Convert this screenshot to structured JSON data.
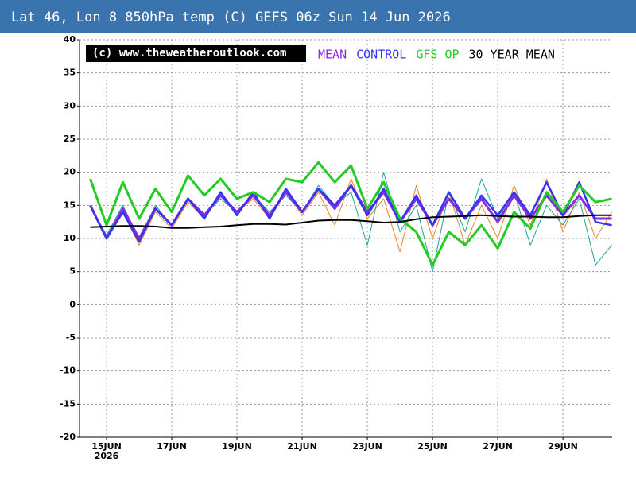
{
  "chart_data": {
    "type": "line",
    "title": "Lat 46, Lon 8 850hPa temp (C) GEFS 06z Sun 14 Jun 2026",
    "watermark": "(c) www.theweatheroutlook.com",
    "year_label": "2026",
    "x": [
      14.5,
      15,
      15.5,
      16,
      16.5,
      17,
      17.5,
      18,
      18.5,
      19,
      19.5,
      20,
      20.5,
      21,
      21.5,
      22,
      22.5,
      23,
      23.5,
      24,
      24.5,
      25,
      25.5,
      26,
      26.5,
      27,
      27.5,
      28,
      28.5,
      29,
      29.5,
      30,
      30.5
    ],
    "xlim": [
      14.17,
      30.51
    ],
    "xticks": [
      {
        "value": 15,
        "label": "15JUN"
      },
      {
        "value": 17,
        "label": "17JUN"
      },
      {
        "value": 19,
        "label": "19JUN"
      },
      {
        "value": 21,
        "label": "21JUN"
      },
      {
        "value": 23,
        "label": "23JUN"
      },
      {
        "value": 25,
        "label": "25JUN"
      },
      {
        "value": 27,
        "label": "27JUN"
      },
      {
        "value": 29,
        "label": "29JUN"
      }
    ],
    "ylim": [
      -20,
      40
    ],
    "yticks": [
      -20,
      -15,
      -10,
      -5,
      0,
      5,
      10,
      15,
      20,
      25,
      30,
      35,
      40
    ],
    "grid": true,
    "series": [
      {
        "color": "#f08020",
        "width": 1,
        "values": [
          15,
          10,
          14,
          9,
          14,
          11.5,
          15.5,
          13,
          16.5,
          14,
          16,
          13,
          17,
          13.5,
          17,
          12,
          19,
          13,
          16,
          8,
          18,
          10,
          17,
          9,
          15,
          10,
          18,
          12,
          19,
          11,
          17,
          10,
          14
        ]
      },
      {
        "color": "#20a0a0",
        "width": 1,
        "values": [
          15,
          10.5,
          15,
          10,
          15,
          12,
          16,
          13.5,
          16,
          14,
          16.5,
          14,
          16.5,
          14,
          18,
          15,
          17,
          9,
          20,
          11,
          15,
          5,
          17,
          11,
          19,
          13,
          17,
          9,
          15,
          12,
          16,
          6,
          9
        ]
      },
      {
        "name": "MEAN",
        "color": "#8a2be2",
        "width": 3,
        "values": [
          15,
          10,
          14.5,
          10,
          14.5,
          12,
          16,
          13.5,
          16.5,
          14,
          16.5,
          13.5,
          17,
          14,
          17.5,
          14.5,
          18,
          14,
          17,
          12.5,
          16,
          12,
          16,
          13,
          16,
          12.5,
          16.5,
          13,
          16.5,
          13.5,
          16.5,
          13,
          13
        ]
      },
      {
        "name": "CONTROL",
        "color": "#3535f0",
        "width": 2.5,
        "values": [
          15,
          10,
          14,
          9.5,
          14.5,
          12,
          16,
          13,
          17,
          13.5,
          17,
          13,
          17.5,
          14,
          17.5,
          15,
          18,
          13.5,
          17.5,
          12.5,
          16.5,
          12,
          17,
          13,
          16.5,
          13.5,
          17,
          13.5,
          18.5,
          13.5,
          18.5,
          12.5,
          12
        ]
      },
      {
        "name": "GFS OP",
        "color": "#22cc22",
        "width": 3,
        "values": [
          19,
          12,
          18.5,
          13,
          17.5,
          14,
          19.5,
          16.5,
          19,
          16,
          17,
          15.5,
          19,
          18.5,
          21.5,
          18.5,
          21,
          14.5,
          18.5,
          13,
          11,
          6,
          11,
          9,
          12,
          8.5,
          14,
          11.5,
          17,
          14,
          18,
          15.5,
          16
        ]
      },
      {
        "name": "30 YEAR MEAN",
        "color": "#000000",
        "width": 2,
        "values": [
          11.7,
          11.8,
          11.9,
          11.9,
          11.8,
          11.6,
          11.6,
          11.7,
          11.8,
          12.0,
          12.2,
          12.2,
          12.1,
          12.4,
          12.7,
          12.8,
          12.8,
          12.6,
          12.4,
          12.5,
          12.9,
          13.2,
          13.3,
          13.4,
          13.5,
          13.4,
          13.3,
          13.3,
          13.2,
          13.2,
          13.4,
          13.5,
          13.5
        ]
      }
    ]
  }
}
